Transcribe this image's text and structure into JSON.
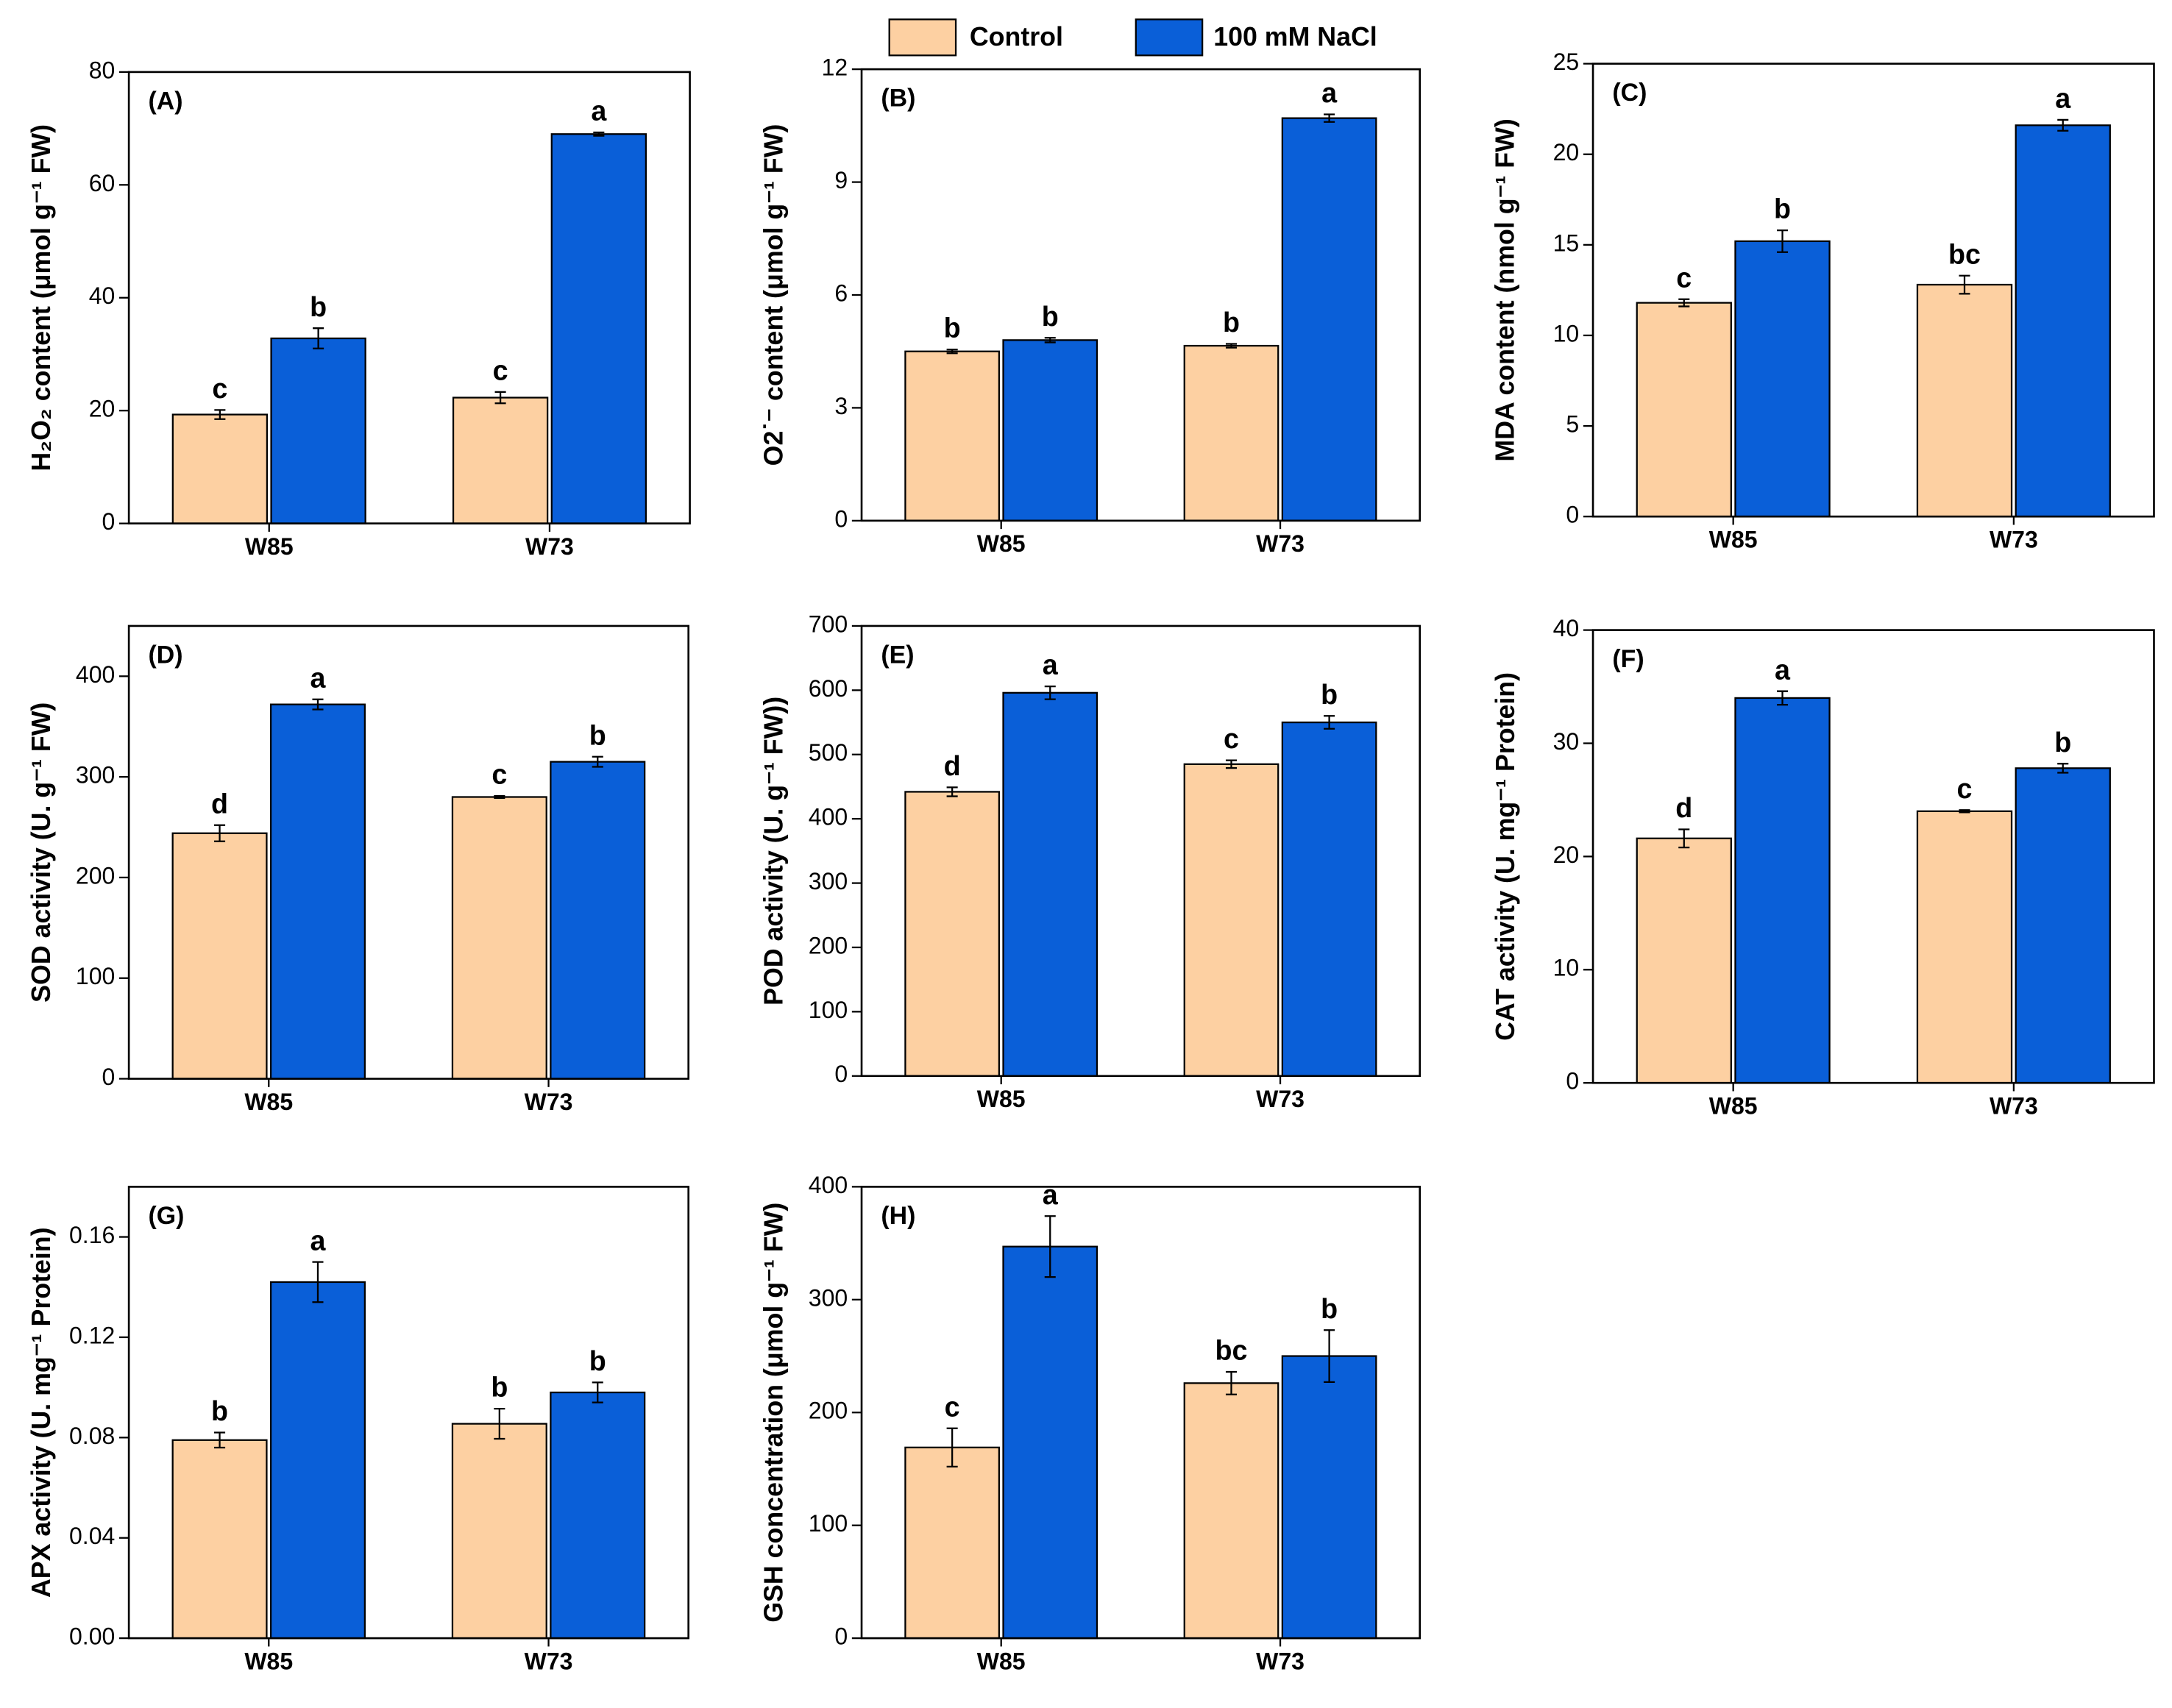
{
  "legend": [
    {
      "name": "Control",
      "color": "#fdd0a2"
    },
    {
      "name": "100 mM NaCl",
      "color": "#0a5fd8"
    }
  ],
  "chart_data": [
    {
      "type": "bar",
      "panel_label": "(A)",
      "y_label": "H₂O₂ content (μmol g⁻¹ FW)",
      "categories": [
        "W85",
        "W73"
      ],
      "series": [
        {
          "values": [
            19.3,
            22.3
          ],
          "errors": [
            0.8,
            1.0
          ],
          "letters": [
            "c",
            "c"
          ]
        },
        {
          "values": [
            32.8,
            69
          ],
          "errors": [
            1.8,
            0.3
          ],
          "letters": [
            "b",
            "a"
          ]
        }
      ],
      "ylim": [
        0,
        80
      ],
      "yticks": [
        0,
        20,
        40,
        60,
        80
      ]
    },
    {
      "type": "bar",
      "panel_label": "(B)",
      "y_label": "O2˙⁻ content (μmol g⁻¹ FW)",
      "categories": [
        "W85",
        "W73"
      ],
      "series": [
        {
          "values": [
            4.5,
            4.65
          ],
          "errors": [
            0.05,
            0.05
          ],
          "letters": [
            "b",
            "b"
          ]
        },
        {
          "values": [
            4.8,
            10.7
          ],
          "errors": [
            0.06,
            0.1
          ],
          "letters": [
            "b",
            "a"
          ]
        }
      ],
      "ylim": [
        0,
        12
      ],
      "yticks": [
        0,
        3,
        6,
        9,
        12
      ]
    },
    {
      "type": "bar",
      "panel_label": "(C)",
      "y_label": "MDA content (nmol g⁻¹ FW)",
      "categories": [
        "W85",
        "W73"
      ],
      "series": [
        {
          "values": [
            11.8,
            12.8
          ],
          "errors": [
            0.2,
            0.5
          ],
          "letters": [
            "c",
            "bc"
          ]
        },
        {
          "values": [
            15.2,
            21.6
          ],
          "errors": [
            0.6,
            0.3
          ],
          "letters": [
            "b",
            "a"
          ]
        }
      ],
      "ylim": [
        0,
        25
      ],
      "yticks": [
        0,
        5,
        10,
        15,
        20,
        25
      ]
    },
    {
      "type": "bar",
      "panel_label": "(D)",
      "y_label": "SOD activity (U. g⁻¹ FW)",
      "categories": [
        "W85",
        "W73"
      ],
      "series": [
        {
          "values": [
            244,
            280
          ],
          "errors": [
            8,
            1
          ],
          "letters": [
            "d",
            "c"
          ]
        },
        {
          "values": [
            372,
            315
          ],
          "errors": [
            5,
            5
          ],
          "letters": [
            "a",
            "b"
          ]
        }
      ],
      "ylim": [
        0,
        450
      ],
      "yticks": [
        0,
        100,
        200,
        300,
        400
      ]
    },
    {
      "type": "bar",
      "panel_label": "(E)",
      "y_label": "POD activity (U. g⁻¹ FW))",
      "categories": [
        "W85",
        "W73"
      ],
      "series": [
        {
          "values": [
            442,
            485
          ],
          "errors": [
            7,
            6
          ],
          "letters": [
            "d",
            "c"
          ]
        },
        {
          "values": [
            596,
            550
          ],
          "errors": [
            10,
            10
          ],
          "letters": [
            "a",
            "b"
          ]
        }
      ],
      "ylim": [
        0,
        700
      ],
      "yticks": [
        0,
        100,
        200,
        300,
        400,
        500,
        600,
        700
      ]
    },
    {
      "type": "bar",
      "panel_label": "(F)",
      "y_label": "CAT activity (U. mg⁻¹ Protein)",
      "categories": [
        "W85",
        "W73"
      ],
      "series": [
        {
          "values": [
            21.6,
            24
          ],
          "errors": [
            0.8,
            0.1
          ],
          "letters": [
            "d",
            "c"
          ]
        },
        {
          "values": [
            34,
            27.8
          ],
          "errors": [
            0.6,
            0.4
          ],
          "letters": [
            "a",
            "b"
          ]
        }
      ],
      "ylim": [
        0,
        40
      ],
      "yticks": [
        0,
        10,
        20,
        30,
        40
      ]
    },
    {
      "type": "bar",
      "panel_label": "(G)",
      "y_label": "APX activity (U. mg⁻¹ Protein)",
      "categories": [
        "W85",
        "W73"
      ],
      "series": [
        {
          "values": [
            0.079,
            0.0855
          ],
          "errors": [
            0.003,
            0.006
          ],
          "letters": [
            "b",
            "b"
          ]
        },
        {
          "values": [
            0.142,
            0.098
          ],
          "errors": [
            0.008,
            0.004
          ],
          "letters": [
            "a",
            "b"
          ]
        }
      ],
      "ylim": [
        0,
        0.18
      ],
      "yticks": [
        {
          "value": 0,
          "label": "0.00"
        },
        0.04,
        0.08,
        0.12,
        0.16
      ]
    },
    {
      "type": "bar",
      "panel_label": "(H)",
      "y_label": "GSH concentration (μmol g⁻¹ FW)",
      "categories": [
        "W85",
        "W73"
      ],
      "series": [
        {
          "values": [
            169,
            226
          ],
          "errors": [
            17,
            10
          ],
          "letters": [
            "c",
            "bc"
          ]
        },
        {
          "values": [
            347,
            250
          ],
          "errors": [
            27,
            23
          ],
          "letters": [
            "a",
            "b"
          ]
        }
      ],
      "ylim": [
        0,
        400
      ],
      "yticks": [
        0,
        100,
        200,
        300,
        400
      ]
    }
  ]
}
